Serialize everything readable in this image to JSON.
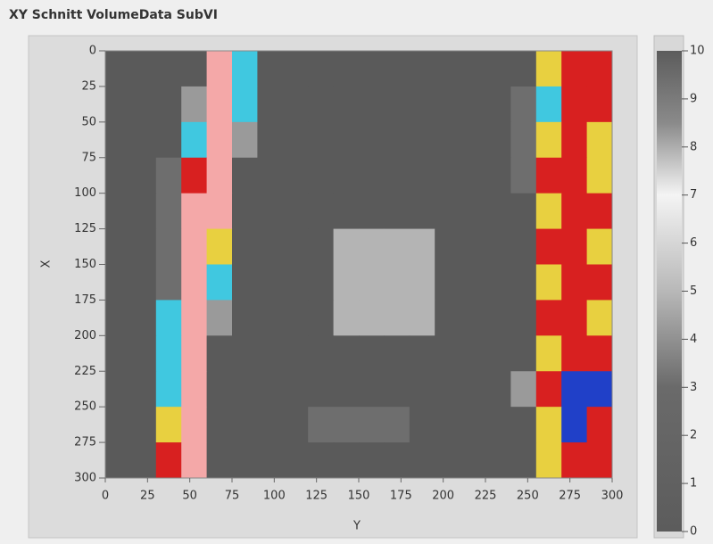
{
  "chart_data": {
    "type": "heatmap",
    "title": "XY Schnitt VolumeData SubVI",
    "x_label": "Y",
    "y_label": "X",
    "xlim": [
      0,
      300
    ],
    "ylim": [
      300,
      0
    ],
    "xticks": [
      0,
      25,
      50,
      75,
      100,
      125,
      150,
      175,
      200,
      225,
      250,
      275,
      300
    ],
    "yticks": [
      0,
      25,
      50,
      75,
      100,
      125,
      150,
      175,
      200,
      225,
      250,
      275,
      300
    ],
    "x_bins": [
      0,
      15,
      30,
      45,
      60,
      75,
      90,
      105,
      120,
      135,
      150,
      165,
      180,
      195,
      210,
      225,
      240,
      255,
      270,
      285,
      300
    ],
    "y_bins": [
      0,
      25,
      50,
      75,
      100,
      125,
      150,
      175,
      200,
      225,
      250,
      275,
      300
    ],
    "z": [
      [
        0,
        0,
        0,
        0,
        8,
        5,
        0,
        0,
        0,
        0,
        0,
        0,
        0,
        0,
        0,
        0,
        0,
        6,
        7,
        7
      ],
      [
        0,
        0,
        0,
        2,
        8,
        5,
        0,
        0,
        0,
        0,
        0,
        0,
        0,
        0,
        0,
        0,
        1,
        5,
        7,
        7
      ],
      [
        0,
        0,
        0,
        5,
        8,
        2,
        0,
        0,
        0,
        0,
        0,
        0,
        0,
        0,
        0,
        0,
        1,
        6,
        7,
        6
      ],
      [
        0,
        0,
        1,
        7,
        8,
        0,
        0,
        0,
        0,
        0,
        0,
        0,
        0,
        0,
        0,
        0,
        1,
        7,
        7,
        6
      ],
      [
        0,
        0,
        1,
        8,
        8,
        0,
        0,
        0,
        0,
        0,
        0,
        0,
        0,
        0,
        0,
        0,
        0,
        6,
        7,
        7
      ],
      [
        0,
        0,
        1,
        8,
        6,
        0,
        0,
        0,
        0,
        3,
        3,
        3,
        3,
        0,
        0,
        0,
        0,
        7,
        7,
        6
      ],
      [
        0,
        0,
        1,
        8,
        5,
        0,
        0,
        0,
        0,
        3,
        3,
        3,
        3,
        0,
        0,
        0,
        0,
        6,
        7,
        7
      ],
      [
        0,
        0,
        5,
        8,
        2,
        0,
        0,
        0,
        0,
        3,
        3,
        3,
        3,
        0,
        0,
        0,
        0,
        7,
        7,
        6
      ],
      [
        0,
        0,
        5,
        8,
        0,
        0,
        0,
        0,
        0,
        0,
        0,
        0,
        0,
        0,
        0,
        0,
        0,
        6,
        7,
        7
      ],
      [
        0,
        0,
        5,
        8,
        0,
        0,
        0,
        0,
        0,
        0,
        0,
        0,
        0,
        0,
        0,
        0,
        2,
        7,
        9,
        9
      ],
      [
        0,
        0,
        6,
        8,
        0,
        0,
        0,
        0,
        1,
        1,
        1,
        1,
        0,
        0,
        0,
        0,
        0,
        6,
        9,
        7
      ],
      [
        0,
        0,
        7,
        8,
        0,
        0,
        0,
        0,
        0,
        0,
        0,
        0,
        0,
        0,
        0,
        0,
        0,
        6,
        7,
        7
      ]
    ],
    "cell_colors": [
      {
        "value": 0,
        "color": "#5a5a5a"
      },
      {
        "value": 1,
        "color": "#6e6e6e"
      },
      {
        "value": 2,
        "color": "#9a9a9a"
      },
      {
        "value": 3,
        "color": "#b4b4b4"
      },
      {
        "value": 5,
        "color": "#40c8e0"
      },
      {
        "value": 6,
        "color": "#e8d040"
      },
      {
        "value": 7,
        "color": "#d82020"
      },
      {
        "value": 8,
        "color": "#f4a8a8"
      },
      {
        "value": 9,
        "color": "#2040c8"
      }
    ],
    "zlim": [
      0,
      10
    ],
    "zticks": [
      0,
      1,
      2,
      3,
      4,
      5,
      6,
      7,
      8,
      9,
      10
    ],
    "colorbar_colors": [
      {
        "value": 0,
        "color": "#5c5c5c"
      },
      {
        "value": 3,
        "color": "#6a6a6a"
      },
      {
        "value": 5,
        "color": "#b8b8b8"
      },
      {
        "value": 7,
        "color": "#f4f4f4"
      },
      {
        "value": 8.5,
        "color": "#8a8a8a"
      },
      {
        "value": 10,
        "color": "#5c5c5c"
      }
    ]
  }
}
